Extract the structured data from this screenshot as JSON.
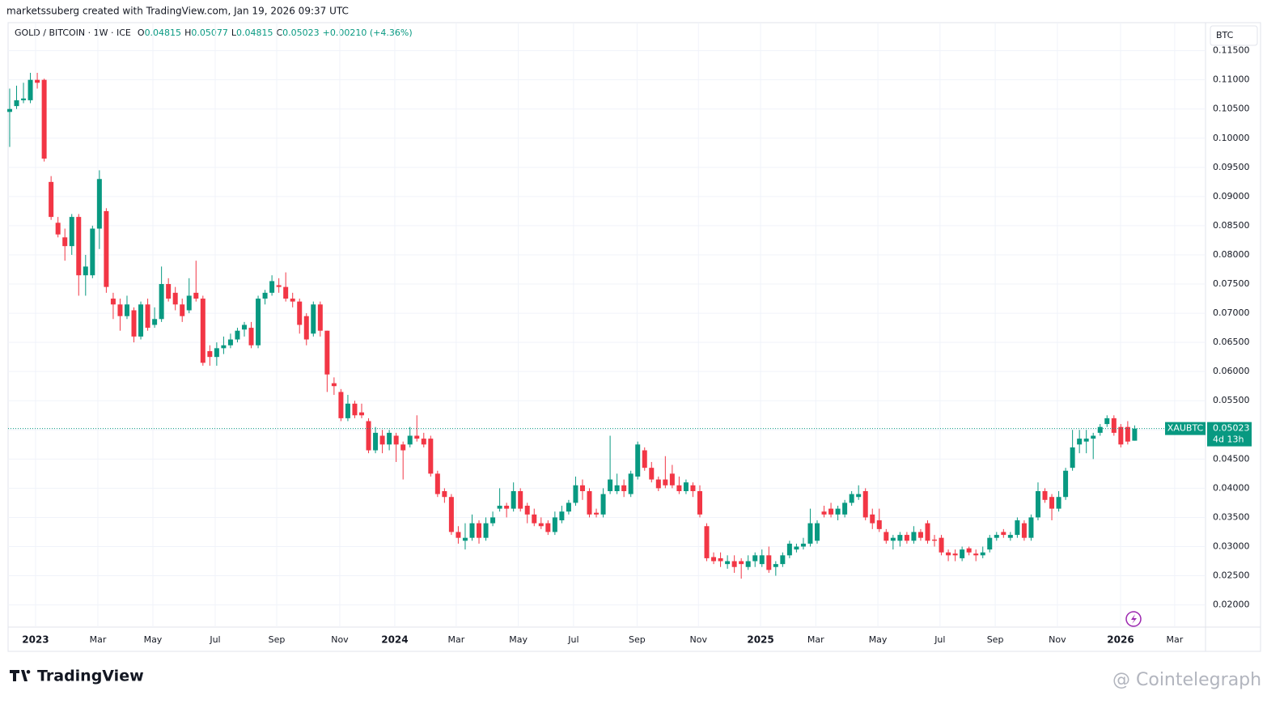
{
  "chart_data": {
    "type": "candlestick",
    "attribution": "marketssuberg created with TradingView.com, Jan 19, 2026 09:37 UTC",
    "symbol": "GOLD / BITCOIN · 1W · ICE",
    "ohlc_labels": [
      "O",
      "H",
      "L",
      "C"
    ],
    "change": "+0.00210 (+4.36%)",
    "currency": "BTC",
    "price_tag": {
      "name": "XAUBTC",
      "countdown": "4d 13h"
    },
    "brand": "TradingView",
    "watermark": "@ Cointelegraph",
    "up_color": "#089981",
    "down_color": "#f23645",
    "grid": true,
    "xlim": [
      -0.23,
      173.27
    ],
    "ylim": [
      0.0162,
      0.1198
    ],
    "xticks": [
      {
        "value": 3.75,
        "label": "2023"
      },
      {
        "value": 12.78,
        "label": "Mar"
      },
      {
        "value": 20.75,
        "label": "May"
      },
      {
        "value": 29.78,
        "label": "Jul"
      },
      {
        "value": 38.69,
        "label": "Sep"
      },
      {
        "value": 47.83,
        "label": "Nov"
      },
      {
        "value": 55.8,
        "label": "2024"
      },
      {
        "value": 64.7,
        "label": "Mar"
      },
      {
        "value": 73.7,
        "label": "May"
      },
      {
        "value": 81.7,
        "label": "Jul"
      },
      {
        "value": 90.9,
        "label": "Sep"
      },
      {
        "value": 99.8,
        "label": "Nov"
      },
      {
        "value": 108.8,
        "label": "2025"
      },
      {
        "value": 116.8,
        "label": "Mar"
      },
      {
        "value": 125.8,
        "label": "May"
      },
      {
        "value": 134.8,
        "label": "Jul"
      },
      {
        "value": 142.8,
        "label": "Sep"
      },
      {
        "value": 151.8,
        "label": "Nov"
      },
      {
        "value": 160.96,
        "label": "2026"
      },
      {
        "value": 168.8,
        "label": "Mar"
      }
    ],
    "yticks": [
      {
        "value": 0.115,
        "label": "0.11500"
      },
      {
        "value": 0.11,
        "label": "0.11000"
      },
      {
        "value": 0.105,
        "label": "0.10500"
      },
      {
        "value": 0.1,
        "label": "0.10000"
      },
      {
        "value": 0.095,
        "label": "0.09500"
      },
      {
        "value": 0.09,
        "label": "0.09000"
      },
      {
        "value": 0.085,
        "label": "0.08500"
      },
      {
        "value": 0.08,
        "label": "0.08000"
      },
      {
        "value": 0.075,
        "label": "0.07500"
      },
      {
        "value": 0.07,
        "label": "0.07000"
      },
      {
        "value": 0.065,
        "label": "0.06500"
      },
      {
        "value": 0.06,
        "label": "0.06000"
      },
      {
        "value": 0.055,
        "label": "0.05500"
      },
      {
        "value": 0.05,
        "label": "0.05000"
      },
      {
        "value": 0.045,
        "label": "0.04500"
      },
      {
        "value": 0.04,
        "label": "0.04000"
      },
      {
        "value": 0.035,
        "label": "0.03500"
      },
      {
        "value": 0.03,
        "label": "0.03000"
      },
      {
        "value": 0.025,
        "label": "0.02500"
      },
      {
        "value": 0.02,
        "label": "0.02000"
      }
    ],
    "ohlc": [
      [
        0.1045,
        0.1085,
        0.0985,
        0.105
      ],
      [
        0.1055,
        0.109,
        0.105,
        0.1065
      ],
      [
        0.1065,
        0.1095,
        0.106,
        0.1068
      ],
      [
        0.1065,
        0.1112,
        0.106,
        0.11
      ],
      [
        0.11,
        0.1112,
        0.1085,
        0.1095
      ],
      [
        0.11,
        0.1102,
        0.096,
        0.0965
      ],
      [
        0.0925,
        0.0935,
        0.086,
        0.0865
      ],
      [
        0.0855,
        0.0865,
        0.083,
        0.0835
      ],
      [
        0.083,
        0.0845,
        0.079,
        0.0815
      ],
      [
        0.0815,
        0.087,
        0.08,
        0.0865
      ],
      [
        0.0865,
        0.087,
        0.073,
        0.0765
      ],
      [
        0.0765,
        0.08,
        0.073,
        0.078
      ],
      [
        0.0765,
        0.085,
        0.076,
        0.0845
      ],
      [
        0.0845,
        0.0945,
        0.081,
        0.093
      ],
      [
        0.0875,
        0.088,
        0.0735,
        0.0745
      ],
      [
        0.0725,
        0.0735,
        0.069,
        0.0715
      ],
      [
        0.0715,
        0.0725,
        0.067,
        0.0695
      ],
      [
        0.0695,
        0.073,
        0.069,
        0.0715
      ],
      [
        0.0705,
        0.071,
        0.065,
        0.066
      ],
      [
        0.066,
        0.072,
        0.0655,
        0.0715
      ],
      [
        0.0715,
        0.0725,
        0.067,
        0.0675
      ],
      [
        0.068,
        0.071,
        0.0675,
        0.069
      ],
      [
        0.069,
        0.078,
        0.0685,
        0.075
      ],
      [
        0.075,
        0.076,
        0.072,
        0.0725
      ],
      [
        0.0735,
        0.0745,
        0.0705,
        0.0715
      ],
      [
        0.0715,
        0.0725,
        0.0685,
        0.0695
      ],
      [
        0.0705,
        0.076,
        0.07,
        0.073
      ],
      [
        0.0735,
        0.079,
        0.072,
        0.0725
      ],
      [
        0.0725,
        0.073,
        0.061,
        0.0615
      ],
      [
        0.0635,
        0.0645,
        0.061,
        0.0625
      ],
      [
        0.0625,
        0.065,
        0.061,
        0.064
      ],
      [
        0.064,
        0.066,
        0.063,
        0.0645
      ],
      [
        0.0645,
        0.0665,
        0.064,
        0.0655
      ],
      [
        0.0655,
        0.0675,
        0.065,
        0.067
      ],
      [
        0.0672,
        0.0685,
        0.066,
        0.068
      ],
      [
        0.0675,
        0.0685,
        0.064,
        0.0645
      ],
      [
        0.0645,
        0.073,
        0.064,
        0.0725
      ],
      [
        0.0725,
        0.074,
        0.0715,
        0.0735
      ],
      [
        0.0735,
        0.0765,
        0.073,
        0.0755
      ],
      [
        0.0748,
        0.076,
        0.0735,
        0.0745
      ],
      [
        0.0745,
        0.077,
        0.072,
        0.0725
      ],
      [
        0.0725,
        0.0735,
        0.071,
        0.072
      ],
      [
        0.072,
        0.0725,
        0.0665,
        0.068
      ],
      [
        0.0695,
        0.07,
        0.0645,
        0.0655
      ],
      [
        0.0665,
        0.072,
        0.066,
        0.0715
      ],
      [
        0.0715,
        0.072,
        0.066,
        0.067
      ],
      [
        0.067,
        0.067,
        0.0565,
        0.0595
      ],
      [
        0.058,
        0.059,
        0.056,
        0.0575
      ],
      [
        0.0565,
        0.057,
        0.0515,
        0.052
      ],
      [
        0.052,
        0.056,
        0.0515,
        0.0545
      ],
      [
        0.0545,
        0.055,
        0.052,
        0.0525
      ],
      [
        0.053,
        0.0545,
        0.052,
        0.0525
      ],
      [
        0.0515,
        0.052,
        0.046,
        0.0465
      ],
      [
        0.0465,
        0.0505,
        0.046,
        0.0495
      ],
      [
        0.049,
        0.05,
        0.046,
        0.0475
      ],
      [
        0.0475,
        0.05,
        0.0465,
        0.0495
      ],
      [
        0.049,
        0.0495,
        0.0445,
        0.0475
      ],
      [
        0.0475,
        0.048,
        0.0415,
        0.0465
      ],
      [
        0.0475,
        0.0505,
        0.047,
        0.049
      ],
      [
        0.049,
        0.0525,
        0.048,
        0.0485
      ],
      [
        0.0485,
        0.0495,
        0.047,
        0.0475
      ],
      [
        0.0485,
        0.049,
        0.042,
        0.0425
      ],
      [
        0.0425,
        0.043,
        0.0385,
        0.039
      ],
      [
        0.0395,
        0.04,
        0.0375,
        0.0385
      ],
      [
        0.0385,
        0.039,
        0.032,
        0.0325
      ],
      [
        0.0325,
        0.0335,
        0.0305,
        0.0315
      ],
      [
        0.031,
        0.034,
        0.0295,
        0.0315
      ],
      [
        0.0315,
        0.0355,
        0.031,
        0.034
      ],
      [
        0.034,
        0.0345,
        0.0305,
        0.0315
      ],
      [
        0.0315,
        0.035,
        0.031,
        0.034
      ],
      [
        0.034,
        0.036,
        0.0335,
        0.035
      ],
      [
        0.0365,
        0.04,
        0.036,
        0.037
      ],
      [
        0.037,
        0.0375,
        0.035,
        0.0365
      ],
      [
        0.0365,
        0.041,
        0.036,
        0.0395
      ],
      [
        0.0395,
        0.04,
        0.036,
        0.0365
      ],
      [
        0.037,
        0.0375,
        0.034,
        0.0355
      ],
      [
        0.0355,
        0.0365,
        0.0335,
        0.034
      ],
      [
        0.034,
        0.035,
        0.033,
        0.0335
      ],
      [
        0.034,
        0.0345,
        0.032,
        0.0325
      ],
      [
        0.0325,
        0.036,
        0.032,
        0.035
      ],
      [
        0.0345,
        0.037,
        0.034,
        0.036
      ],
      [
        0.036,
        0.038,
        0.0355,
        0.0375
      ],
      [
        0.0375,
        0.042,
        0.037,
        0.0405
      ],
      [
        0.0405,
        0.0415,
        0.038,
        0.0395
      ],
      [
        0.0395,
        0.04,
        0.035,
        0.0355
      ],
      [
        0.0358,
        0.0365,
        0.035,
        0.0355
      ],
      [
        0.0355,
        0.04,
        0.035,
        0.039
      ],
      [
        0.0395,
        0.049,
        0.039,
        0.0415
      ],
      [
        0.0395,
        0.0425,
        0.039,
        0.0405
      ],
      [
        0.0405,
        0.0415,
        0.0385,
        0.0395
      ],
      [
        0.039,
        0.043,
        0.0385,
        0.0425
      ],
      [
        0.042,
        0.048,
        0.0415,
        0.0475
      ],
      [
        0.0465,
        0.047,
        0.043,
        0.0435
      ],
      [
        0.0435,
        0.0445,
        0.041,
        0.0415
      ],
      [
        0.0415,
        0.042,
        0.0395,
        0.04
      ],
      [
        0.0415,
        0.0455,
        0.04,
        0.0405
      ],
      [
        0.0425,
        0.044,
        0.04,
        0.0405
      ],
      [
        0.0405,
        0.042,
        0.039,
        0.0395
      ],
      [
        0.0395,
        0.0415,
        0.039,
        0.041
      ],
      [
        0.0405,
        0.041,
        0.0385,
        0.0395
      ],
      [
        0.0395,
        0.0405,
        0.035,
        0.0355
      ],
      [
        0.0335,
        0.034,
        0.0275,
        0.028
      ],
      [
        0.0282,
        0.029,
        0.027,
        0.0275
      ],
      [
        0.028,
        0.029,
        0.0265,
        0.0275
      ],
      [
        0.027,
        0.0285,
        0.0262,
        0.0275
      ],
      [
        0.0275,
        0.0285,
        0.0255,
        0.0265
      ],
      [
        0.0275,
        0.028,
        0.0245,
        0.027
      ],
      [
        0.0265,
        0.0285,
        0.026,
        0.0275
      ],
      [
        0.0275,
        0.029,
        0.0265,
        0.0285
      ],
      [
        0.027,
        0.0295,
        0.0265,
        0.0285
      ],
      [
        0.0285,
        0.03,
        0.0255,
        0.026
      ],
      [
        0.0265,
        0.0275,
        0.025,
        0.027
      ],
      [
        0.027,
        0.029,
        0.0265,
        0.0285
      ],
      [
        0.0285,
        0.031,
        0.028,
        0.0305
      ],
      [
        0.0295,
        0.0305,
        0.029,
        0.03
      ],
      [
        0.03,
        0.0315,
        0.0295,
        0.0305
      ],
      [
        0.0305,
        0.0365,
        0.03,
        0.034
      ],
      [
        0.031,
        0.0345,
        0.0305,
        0.034
      ],
      [
        0.036,
        0.037,
        0.035,
        0.0355
      ],
      [
        0.0365,
        0.0375,
        0.035,
        0.0355
      ],
      [
        0.0355,
        0.037,
        0.0345,
        0.0365
      ],
      [
        0.0355,
        0.038,
        0.035,
        0.0375
      ],
      [
        0.0375,
        0.0395,
        0.037,
        0.039
      ],
      [
        0.0385,
        0.0405,
        0.038,
        0.039
      ],
      [
        0.0395,
        0.04,
        0.0345,
        0.035
      ],
      [
        0.0355,
        0.0365,
        0.033,
        0.034
      ],
      [
        0.0345,
        0.0365,
        0.0325,
        0.033
      ],
      [
        0.0325,
        0.033,
        0.0305,
        0.031
      ],
      [
        0.031,
        0.032,
        0.0295,
        0.0315
      ],
      [
        0.031,
        0.0325,
        0.03,
        0.032
      ],
      [
        0.032,
        0.0325,
        0.0305,
        0.031
      ],
      [
        0.031,
        0.0335,
        0.0305,
        0.0325
      ],
      [
        0.0325,
        0.033,
        0.031,
        0.0315
      ],
      [
        0.034,
        0.0345,
        0.0305,
        0.031
      ],
      [
        0.0312,
        0.032,
        0.03,
        0.031
      ],
      [
        0.0315,
        0.032,
        0.0285,
        0.029
      ],
      [
        0.029,
        0.0295,
        0.0275,
        0.0285
      ],
      [
        0.0288,
        0.0295,
        0.0275,
        0.0285
      ],
      [
        0.028,
        0.03,
        0.0275,
        0.0295
      ],
      [
        0.0297,
        0.03,
        0.0285,
        0.029
      ],
      [
        0.0288,
        0.0295,
        0.0275,
        0.0285
      ],
      [
        0.0285,
        0.03,
        0.028,
        0.029
      ],
      [
        0.0295,
        0.032,
        0.029,
        0.0315
      ],
      [
        0.0315,
        0.0325,
        0.031,
        0.032
      ],
      [
        0.0325,
        0.033,
        0.0315,
        0.032
      ],
      [
        0.0315,
        0.0325,
        0.031,
        0.032
      ],
      [
        0.032,
        0.035,
        0.0315,
        0.0345
      ],
      [
        0.034,
        0.0345,
        0.031,
        0.0315
      ],
      [
        0.0315,
        0.0355,
        0.031,
        0.035
      ],
      [
        0.035,
        0.041,
        0.0345,
        0.0395
      ],
      [
        0.0395,
        0.04,
        0.0375,
        0.038
      ],
      [
        0.0385,
        0.039,
        0.0345,
        0.0365
      ],
      [
        0.0365,
        0.0395,
        0.036,
        0.0385
      ],
      [
        0.0385,
        0.0435,
        0.038,
        0.043
      ],
      [
        0.0435,
        0.05,
        0.043,
        0.047
      ],
      [
        0.0475,
        0.05,
        0.046,
        0.0485
      ],
      [
        0.048,
        0.05,
        0.046,
        0.0485
      ],
      [
        0.0485,
        0.0495,
        0.045,
        0.049
      ],
      [
        0.0495,
        0.051,
        0.049,
        0.0505
      ],
      [
        0.051,
        0.0525,
        0.0505,
        0.052
      ],
      [
        0.052,
        0.0525,
        0.049,
        0.0495
      ],
      [
        0.0505,
        0.051,
        0.047,
        0.0475
      ],
      [
        0.0505,
        0.0515,
        0.0475,
        0.048
      ],
      [
        0.04815,
        0.05077,
        0.04815,
        0.05023
      ]
    ]
  }
}
